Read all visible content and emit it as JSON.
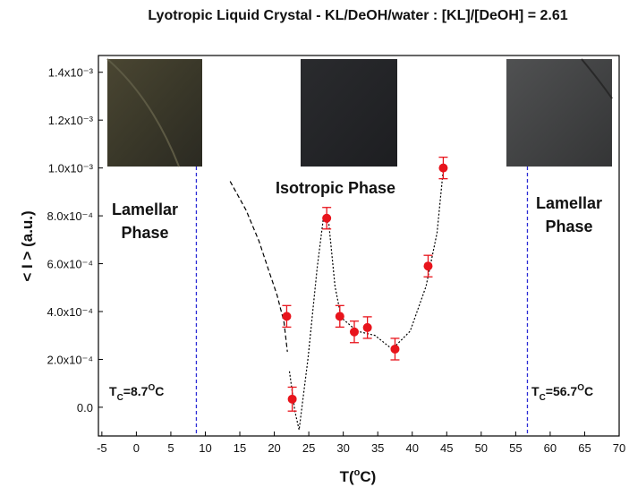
{
  "chart_data": {
    "type": "scatter",
    "title": "Lyotropic Liquid Crystal - KL/DeOH/water : [KL]/[DeOH] = 2.61",
    "x_label_parts": [
      "T(",
      "o",
      "C)"
    ],
    "y_label": "< I > (a.u.)",
    "xlim": [
      -5.5,
      70
    ],
    "ylim": [
      -0.00012,
      0.00147
    ],
    "xticks": [
      -5,
      0,
      5,
      10,
      15,
      20,
      25,
      30,
      35,
      40,
      45,
      50,
      55,
      60,
      65,
      70
    ],
    "yticks": [
      {
        "value": 0,
        "label": "0.0"
      },
      {
        "value": 0.0002,
        "label": "2.0x10⁻⁴"
      },
      {
        "value": 0.0004,
        "label": "4.0x10⁻⁴"
      },
      {
        "value": 0.0006,
        "label": "6.0x10⁻⁴"
      },
      {
        "value": 0.0008,
        "label": "8.0x10⁻⁴"
      },
      {
        "value": 0.001,
        "label": "1.0x10⁻³"
      },
      {
        "value": 0.0012,
        "label": "1.2x10⁻³"
      },
      {
        "value": 0.0014,
        "label": "1.4x10⁻³"
      }
    ],
    "series": [
      {
        "color": "#e8141c",
        "x": [
          21.8,
          22.6,
          27.6,
          29.5,
          31.6,
          33.5,
          37.5,
          42.3,
          44.5
        ],
        "y": [
          0.00038,
          3.4e-05,
          0.00079,
          0.00038,
          0.000315,
          0.000333,
          0.000243,
          0.00059,
          0.001
        ],
        "errors": [
          4.5e-05,
          5e-05,
          4.5e-05,
          4.5e-05,
          4.5e-05,
          4.5e-05,
          4.5e-05,
          4.5e-05,
          4.5e-05
        ]
      }
    ],
    "curves": [
      {
        "style": "dashed",
        "color": "#000000",
        "x": [
          13.6,
          15.9,
          17.8,
          19.1,
          20.4,
          21.4,
          21.9
        ],
        "y": [
          0.000944,
          0.000824,
          0.000693,
          0.00058,
          0.000468,
          0.000356,
          0.000232
        ]
      },
      {
        "style": "dotted",
        "color": "#000000",
        "x": [
          22.2,
          23.0,
          23.6,
          24.9,
          26.2,
          27.1,
          27.9,
          28.8,
          29.7,
          32.0,
          34.6,
          37.1,
          39.7,
          42.0,
          43.6,
          44.5
        ],
        "y": [
          0.00015,
          -1.9e-05,
          -9.4e-05,
          0.000206,
          0.00058,
          0.000787,
          0.000768,
          0.000506,
          0.000375,
          0.000318,
          0.0003,
          0.000243,
          0.000318,
          0.000506,
          0.00073,
          0.000993
        ]
      }
    ],
    "tc_lines": [
      {
        "x": 8.7,
        "color": "#2b2bd6",
        "parts": [
          "T",
          "C",
          "=8.7",
          "O",
          "C"
        ]
      },
      {
        "x": 56.7,
        "color": "#2b2bd6",
        "parts": [
          "T",
          "C",
          "=56.7",
          "O",
          "C"
        ]
      }
    ],
    "annotations": [
      {
        "lines": [
          "Lamellar",
          "Phase"
        ]
      },
      {
        "lines": [
          "Isotropic Phase"
        ]
      },
      {
        "lines": [
          "Lamellar",
          "Phase"
        ]
      }
    ]
  }
}
